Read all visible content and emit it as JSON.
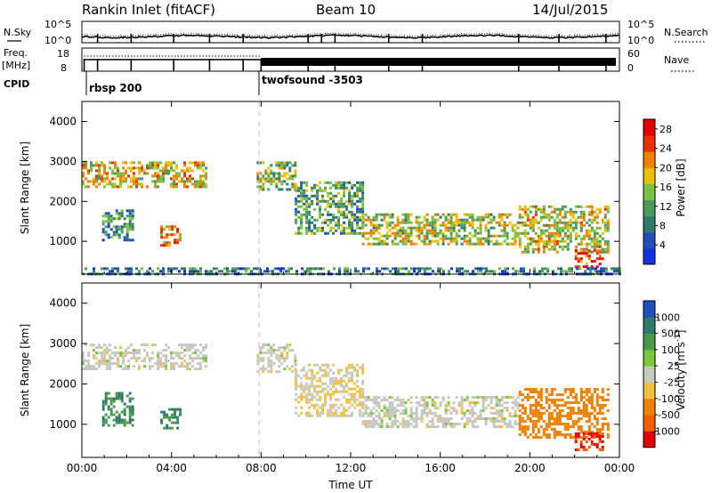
{
  "header": {
    "title": "Rankin Inlet (fitACF)",
    "beam": "Beam 10",
    "date": "14/Jul/2015"
  },
  "status_panel": {
    "nsky_label": "N.Sky",
    "nsky_ticks": [
      "10^5",
      "10^0"
    ],
    "nsearch_label": "N.Search",
    "nsearch_ticks": [
      "10^5",
      "10^0"
    ],
    "freq_label_1": "Freq.",
    "freq_label_2": "[MHz]",
    "freq_ticks": [
      "18",
      "8"
    ],
    "nave_label": "Nave",
    "nave_ticks": [
      "60",
      "0"
    ],
    "cpid_label": "CPID",
    "cpid_modes": [
      {
        "name": "rbsp 200",
        "start_hour": 0.0
      },
      {
        "name": "twofsound -3503",
        "start_hour": 8.0
      }
    ]
  },
  "chart_data": [
    {
      "type": "heatmap",
      "title": "",
      "xlabel": "",
      "ylabel": "Slant Range [km]",
      "x_ticks": [
        "00:00",
        "04:00",
        "08:00",
        "12:00",
        "16:00",
        "20:00",
        "00:00"
      ],
      "xlim_hours": [
        0,
        24
      ],
      "ylim_km": [
        180,
        4500
      ],
      "y_ticks": [
        1000,
        2000,
        3000,
        4000
      ],
      "colorbar": {
        "label": "Power [dB]",
        "ticks": [
          4,
          8,
          12,
          16,
          20,
          24,
          28
        ],
        "range": [
          0,
          30
        ],
        "colors": [
          "#1530e0",
          "#2050b8",
          "#2e7a6c",
          "#4a9a5c",
          "#78c040",
          "#e8c000",
          "#f08000",
          "#e83000",
          "#e00000"
        ]
      },
      "echo_regions": [
        {
          "t0": 0.0,
          "t1": 5.5,
          "r0": 2350,
          "r1": 3000,
          "level": 18
        },
        {
          "t0": 0.9,
          "t1": 2.3,
          "r0": 1000,
          "r1": 1800,
          "level": 10
        },
        {
          "t0": 3.5,
          "t1": 4.4,
          "r0": 900,
          "r1": 1400,
          "level": 22
        },
        {
          "t0": 7.8,
          "t1": 9.5,
          "r0": 2300,
          "r1": 3000,
          "level": 14
        },
        {
          "t0": 9.5,
          "t1": 12.5,
          "r0": 1200,
          "r1": 2500,
          "level": 12
        },
        {
          "t0": 12.5,
          "t1": 19.5,
          "r0": 950,
          "r1": 1700,
          "level": 16
        },
        {
          "t0": 19.5,
          "t1": 23.5,
          "r0": 700,
          "r1": 1900,
          "level": 17
        },
        {
          "t0": 22.0,
          "t1": 23.3,
          "r0": 350,
          "r1": 800,
          "level": 26
        },
        {
          "t0": 0.0,
          "t1": 24.0,
          "r0": 180,
          "r1": 350,
          "level": 8
        }
      ]
    },
    {
      "type": "heatmap",
      "title": "",
      "xlabel": "Time UT",
      "ylabel": "Slant Range [km]",
      "x_ticks": [
        "00:00",
        "04:00",
        "08:00",
        "12:00",
        "16:00",
        "20:00",
        "00:00"
      ],
      "xlim_hours": [
        0,
        24
      ],
      "ylim_km": [
        180,
        4500
      ],
      "y_ticks": [
        1000,
        2000,
        3000,
        4000
      ],
      "colorbar": {
        "label": "Velocity [m s^-1]",
        "ticks": [
          "1000",
          "500",
          "100",
          "25",
          "-25",
          "-100",
          "-500",
          "-1000"
        ],
        "colors": [
          "#2050c0",
          "#2e7a6c",
          "#4a9a4c",
          "#7ac83a",
          "#c8c8c0",
          "#f0c040",
          "#f08000",
          "#f06000",
          "#e00000"
        ]
      },
      "echo_regions": [
        {
          "t0": 0.0,
          "t1": 5.5,
          "r0": 2350,
          "r1": 3000,
          "level": 0
        },
        {
          "t0": 0.9,
          "t1": 2.3,
          "r0": 1000,
          "r1": 1800,
          "level": 250
        },
        {
          "t0": 3.5,
          "t1": 4.4,
          "r0": 900,
          "r1": 1400,
          "level": 300
        },
        {
          "t0": 7.8,
          "t1": 9.5,
          "r0": 2300,
          "r1": 3000,
          "level": 0
        },
        {
          "t0": 9.5,
          "t1": 12.5,
          "r0": 1200,
          "r1": 2500,
          "level": -20
        },
        {
          "t0": 12.5,
          "t1": 19.5,
          "r0": 950,
          "r1": 1700,
          "level": 0
        },
        {
          "t0": 19.5,
          "t1": 23.5,
          "r0": 700,
          "r1": 1900,
          "level": -150
        },
        {
          "t0": 22.0,
          "t1": 23.3,
          "r0": 350,
          "r1": 800,
          "level": -700
        }
      ]
    }
  ]
}
